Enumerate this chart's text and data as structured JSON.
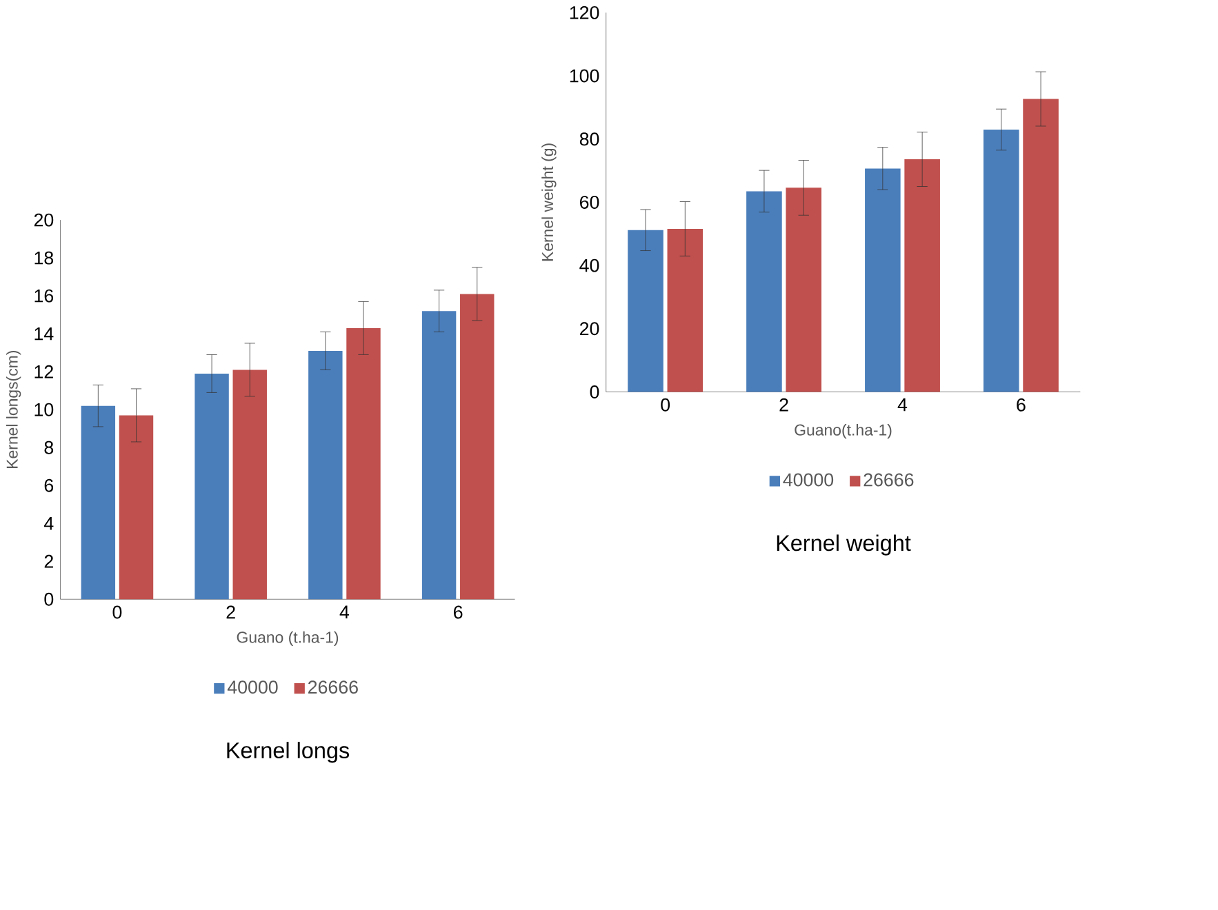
{
  "chart_data": [
    {
      "type": "bar",
      "title": "Kernel longs",
      "xlabel": "Guano (t.ha-1)",
      "ylabel": "Kernel longs(cm)",
      "categories": [
        "0",
        "2",
        "4",
        "6"
      ],
      "ylim": [
        0,
        20
      ],
      "yticks": [
        0,
        2,
        4,
        6,
        8,
        10,
        12,
        14,
        16,
        18,
        20
      ],
      "legend": "bottom",
      "series": [
        {
          "name": "40000",
          "color": "#4a7ebb",
          "values": [
            10.2,
            11.9,
            13.1,
            15.2
          ],
          "errors": [
            1.1,
            1.0,
            1.0,
            1.1
          ]
        },
        {
          "name": "26666",
          "color": "#c0504d",
          "values": [
            9.7,
            12.1,
            14.3,
            16.1
          ],
          "errors": [
            1.4,
            1.4,
            1.4,
            1.4
          ]
        }
      ]
    },
    {
      "type": "bar",
      "title": "Kernel weight",
      "xlabel": "Guano(t.ha-1)",
      "ylabel": "Kernel weight (g)",
      "categories": [
        "0",
        "2",
        "4",
        "6"
      ],
      "ylim": [
        0,
        120
      ],
      "yticks": [
        0,
        20,
        40,
        60,
        80,
        100,
        120
      ],
      "legend": "bottom",
      "series": [
        {
          "name": "40000",
          "color": "#4a7ebb",
          "values": [
            51.2,
            63.5,
            70.7,
            83.0
          ],
          "errors": [
            6.5,
            6.6,
            6.7,
            6.5
          ]
        },
        {
          "name": "26666",
          "color": "#c0504d",
          "values": [
            51.6,
            64.6,
            73.6,
            92.7
          ],
          "errors": [
            8.6,
            8.7,
            8.6,
            8.6
          ]
        }
      ]
    }
  ]
}
